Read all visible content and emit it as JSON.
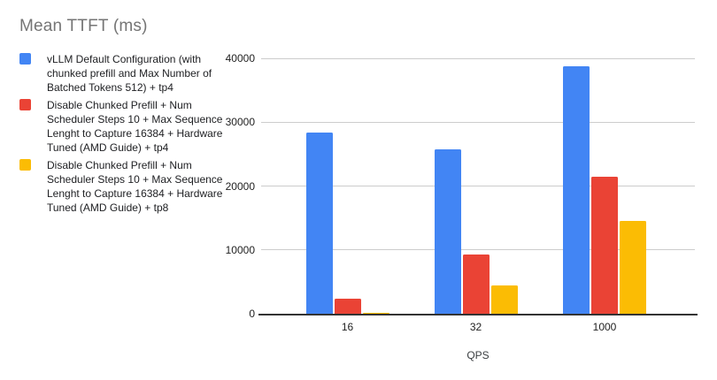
{
  "colors": {
    "background": "#ffffff",
    "title_text": "#757575",
    "legend_text": "#202124",
    "axis_text": "#1f1f1f",
    "axis_title_text": "#3c4043",
    "gridline": "#cccccc",
    "baseline": "#333333",
    "series_blue": "#4285F4",
    "series_red": "#EA4335",
    "series_yellow": "#FBBC04"
  },
  "chart_data": {
    "type": "bar",
    "title": "Mean TTFT (ms)",
    "xlabel": "QPS",
    "ylabel": "",
    "categories": [
      "16",
      "32",
      "1000"
    ],
    "series": [
      {
        "name": "vLLM Default Configuration (with chunked prefill and Max Number of Batched Tokens 512) + tp4",
        "color": "#4285F4",
        "values": [
          28400,
          25800,
          38800
        ]
      },
      {
        "name": "Disable Chunked Prefill + Num Scheduler Steps 10 + Max Sequence Lenght to Capture 16384 + Hardware Tuned (AMD Guide) + tp4",
        "color": "#EA4335",
        "values": [
          2300,
          9300,
          21500
        ]
      },
      {
        "name": "Disable Chunked Prefill + Num Scheduler Steps 10 + Max Sequence Lenght to Capture 16384 + Hardware Tuned (AMD Guide) + tp8",
        "color": "#FBBC04",
        "values": [
          200,
          4500,
          14500
        ]
      }
    ],
    "ylim": [
      0,
      40000
    ],
    "yticks": [
      0,
      10000,
      20000,
      30000,
      40000
    ],
    "grid": true,
    "legend_position": "left"
  }
}
